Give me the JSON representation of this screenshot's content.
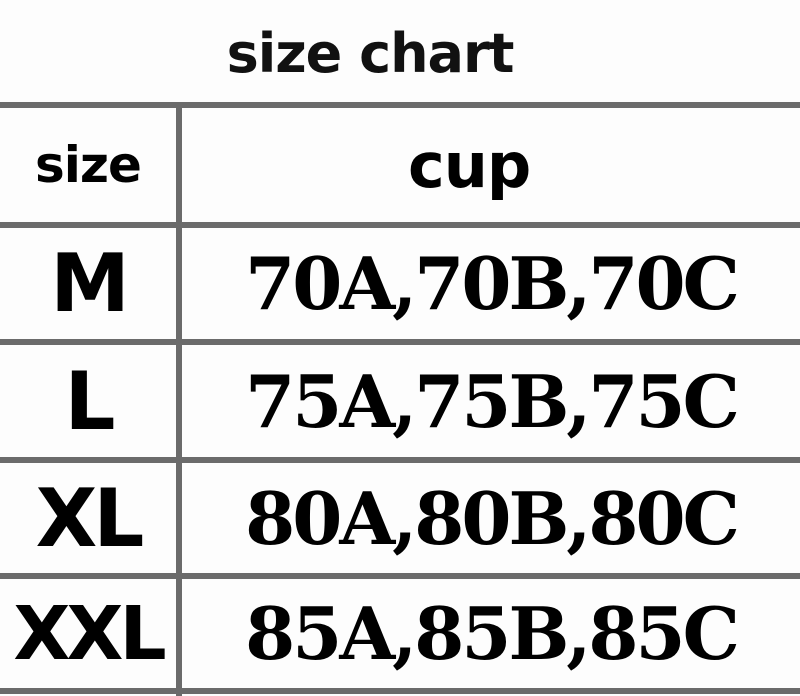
{
  "title": "size chart",
  "headers": {
    "size": "size",
    "cup": "cup"
  },
  "rows": [
    {
      "size": "M",
      "cup": "70A,70B,70C"
    },
    {
      "size": "L",
      "cup": "75A,75B,75C"
    },
    {
      "size": "XL",
      "cup": "80A,80B,80C"
    },
    {
      "size": "XXL",
      "cup": "85A,85B,85C"
    }
  ],
  "colors": {
    "grid": "#6b6b6b",
    "text": "#000000"
  }
}
